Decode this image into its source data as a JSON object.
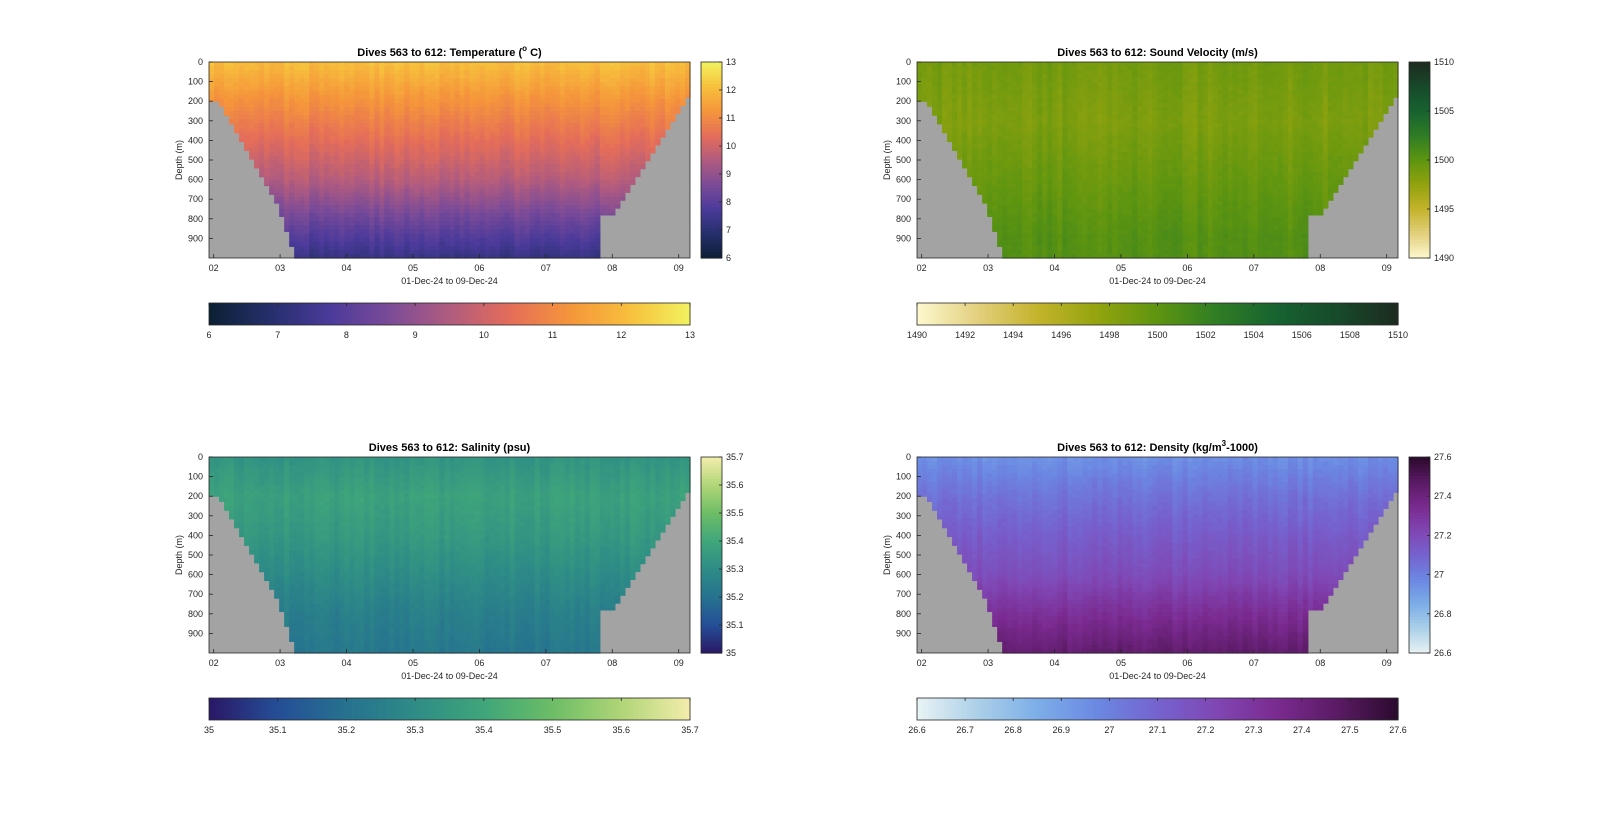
{
  "figure": {
    "chart_data": [
      {
        "type": "heatmap",
        "title": "Dives 563 to 612: Temperature (",
        "title_sup": "o",
        "title_suffix": " C)",
        "xlabel": "01-Dec-24 to 09-Dec-24",
        "ylabel": "Depth (m)",
        "xticks": [
          "02",
          "03",
          "04",
          "05",
          "06",
          "07",
          "08",
          "09"
        ],
        "yticks": [
          "0",
          "100",
          "200",
          "300",
          "400",
          "500",
          "600",
          "700",
          "800",
          "900"
        ],
        "ylim": [
          0,
          1000
        ],
        "x_range_days": [
          1.93,
          9.17
        ],
        "variable": "temperature",
        "clim": [
          6,
          13
        ],
        "colorbar_vertical_ticks": [
          "6",
          "7",
          "8",
          "9",
          "10",
          "11",
          "12",
          "13"
        ],
        "colorbar_horizontal_ticks": [
          "6",
          "7",
          "8",
          "9",
          "10",
          "11",
          "12",
          "13"
        ],
        "colormap": [
          "#0b1f33",
          "#252f6b",
          "#4a3a9a",
          "#7b4b98",
          "#b05b7f",
          "#e46d5a",
          "#f5953b",
          "#f7c03c",
          "#f2f25f"
        ],
        "profile_at_dive_center": [
          {
            "depth": 0,
            "value": 12.1
          },
          {
            "depth": 200,
            "value": 11.2
          },
          {
            "depth": 400,
            "value": 10.4
          },
          {
            "depth": 600,
            "value": 9.6
          },
          {
            "depth": 800,
            "value": 8.4
          },
          {
            "depth": 1000,
            "value": 7.3
          }
        ]
      },
      {
        "type": "heatmap",
        "title": "Dives 563 to 612: Sound Velocity (m/s)",
        "title_sup": "",
        "title_suffix": "",
        "xlabel": "01-Dec-24 to 09-Dec-24",
        "ylabel": "Depth (m)",
        "xticks": [
          "02",
          "03",
          "04",
          "05",
          "06",
          "07",
          "08",
          "09"
        ],
        "yticks": [
          "0",
          "100",
          "200",
          "300",
          "400",
          "500",
          "600",
          "700",
          "800",
          "900"
        ],
        "ylim": [
          0,
          1000
        ],
        "x_range_days": [
          1.93,
          9.17
        ],
        "variable": "sound_velocity",
        "clim": [
          1490,
          1510
        ],
        "colorbar_vertical_ticks": [
          "1490",
          "1495",
          "1500",
          "1505",
          "1510"
        ],
        "colorbar_horizontal_ticks": [
          "1490",
          "1492",
          "1494",
          "1496",
          "1498",
          "1500",
          "1502",
          "1504",
          "1506",
          "1508",
          "1510"
        ],
        "colormap": [
          "#fdf8cf",
          "#e3d07e",
          "#c4b32c",
          "#93a30e",
          "#5e9510",
          "#2f7d25",
          "#176230",
          "#174a2b",
          "#1d2b1f"
        ],
        "profile_at_dive_center": [
          {
            "depth": 0,
            "value": 1499
          },
          {
            "depth": 300,
            "value": 1498.5
          },
          {
            "depth": 600,
            "value": 1499.5
          },
          {
            "depth": 900,
            "value": 1500.5
          }
        ]
      },
      {
        "type": "heatmap",
        "title": "Dives 563 to 612: Salinity (psu)",
        "title_sup": "",
        "title_suffix": "",
        "xlabel": "01-Dec-24 to 09-Dec-24",
        "ylabel": "Depth (m)",
        "xticks": [
          "02",
          "03",
          "04",
          "05",
          "06",
          "07",
          "08",
          "09"
        ],
        "yticks": [
          "0",
          "100",
          "200",
          "300",
          "400",
          "500",
          "600",
          "700",
          "800",
          "900"
        ],
        "ylim": [
          0,
          1000
        ],
        "x_range_days": [
          1.93,
          9.17
        ],
        "variable": "salinity",
        "clim": [
          35,
          35.7
        ],
        "colorbar_vertical_ticks": [
          "35",
          "35.1",
          "35.2",
          "35.3",
          "35.4",
          "35.5",
          "35.6",
          "35.7"
        ],
        "colorbar_horizontal_ticks": [
          "35",
          "35.1",
          "35.2",
          "35.3",
          "35.4",
          "35.5",
          "35.6",
          "35.7"
        ],
        "colormap": [
          "#2a1866",
          "#254e97",
          "#26728f",
          "#2e8c86",
          "#3fa67a",
          "#6cbd66",
          "#b0d577",
          "#f3edac"
        ],
        "profile_at_dive_center": [
          {
            "depth": 0,
            "value": 35.33
          },
          {
            "depth": 200,
            "value": 35.38
          },
          {
            "depth": 400,
            "value": 35.35
          },
          {
            "depth": 600,
            "value": 35.3
          },
          {
            "depth": 800,
            "value": 35.25
          },
          {
            "depth": 1000,
            "value": 35.22
          }
        ]
      },
      {
        "type": "heatmap",
        "title": "Dives 563 to 612: Density (kg/m",
        "title_sup": "3",
        "title_suffix": "-1000)",
        "xlabel": "01-Dec-24 to 09-Dec-24",
        "ylabel": "Depth (m)",
        "xticks": [
          "02",
          "03",
          "04",
          "05",
          "06",
          "07",
          "08",
          "09"
        ],
        "yticks": [
          "0",
          "100",
          "200",
          "300",
          "400",
          "500",
          "600",
          "700",
          "800",
          "900"
        ],
        "ylim": [
          0,
          1000
        ],
        "x_range_days": [
          1.93,
          9.17
        ],
        "variable": "density",
        "clim": [
          26.6,
          27.6
        ],
        "colorbar_vertical_ticks": [
          "26.6",
          "26.8",
          "27",
          "27.2",
          "27.4",
          "27.6"
        ],
        "colorbar_horizontal_ticks": [
          "26.6",
          "26.7",
          "26.8",
          "26.9",
          "27",
          "27.1",
          "27.2",
          "27.3",
          "27.4",
          "27.5",
          "27.6"
        ],
        "colormap": [
          "#e9f3f4",
          "#acd0e8",
          "#7daee8",
          "#6b88e2",
          "#7563cf",
          "#8046b3",
          "#7a2a8f",
          "#5a1a64",
          "#2b0a2d"
        ],
        "profile_at_dive_center": [
          {
            "depth": 0,
            "value": 26.95
          },
          {
            "depth": 200,
            "value": 27.05
          },
          {
            "depth": 400,
            "value": 27.13
          },
          {
            "depth": 600,
            "value": 27.2
          },
          {
            "depth": 800,
            "value": 27.33
          },
          {
            "depth": 1000,
            "value": 27.45
          }
        ]
      }
    ],
    "colors": {
      "seafloor": "#a3a3a3",
      "axis": "#262626"
    }
  }
}
